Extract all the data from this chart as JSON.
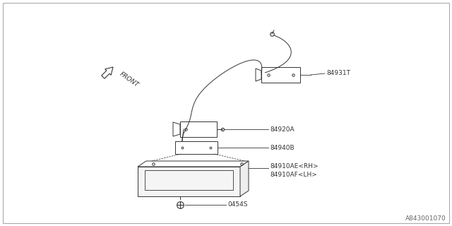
{
  "background_color": "#ffffff",
  "diagram_color": "#333333",
  "footer_text": "A843001070",
  "lw": 0.7,
  "front_label": "FRONT",
  "labels": {
    "84931T": "84931T",
    "84920A": "84920A",
    "84940B": "84940B",
    "84910AE": "84910AE<RH>",
    "84910AF": "84910AF<LH>",
    "0454S": "0454S"
  }
}
